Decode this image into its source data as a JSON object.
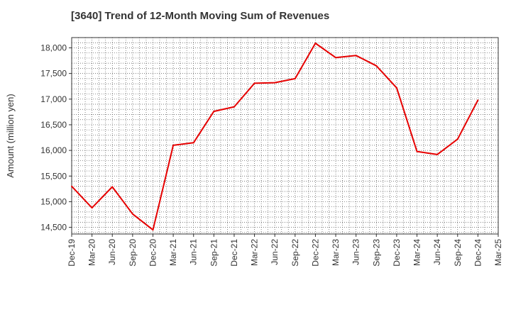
{
  "chart_data": {
    "type": "line",
    "title": "[3640]  Trend of 12-Month Moving Sum of Revenues",
    "ylabel": "Amount (million yen)",
    "xlabel": "",
    "ylim": [
      14370,
      18200
    ],
    "yticks": [
      14500,
      15000,
      15500,
      16000,
      16500,
      17000,
      17500,
      18000
    ],
    "ytick_labels": [
      "14,500",
      "15,000",
      "15,500",
      "16,000",
      "16,500",
      "17,000",
      "17,500",
      "18,000"
    ],
    "categories": [
      "Dec-19",
      "Mar-20",
      "Jun-20",
      "Sep-20",
      "Dec-20",
      "Mar-21",
      "Jun-21",
      "Sep-21",
      "Dec-21",
      "Mar-22",
      "Jun-22",
      "Sep-22",
      "Dec-22",
      "Mar-23",
      "Jun-23",
      "Sep-23",
      "Dec-23",
      "Mar-24",
      "Jun-24",
      "Sep-24",
      "Dec-24",
      "Mar-25"
    ],
    "series": [
      {
        "name": "",
        "color": "#e60000",
        "values": [
          15300,
          14880,
          15290,
          14760,
          14450,
          16100,
          16150,
          16760,
          16850,
          17310,
          17320,
          17400,
          18090,
          17810,
          17850,
          17650,
          17220,
          15980,
          15920,
          16220,
          16980,
          null
        ]
      }
    ],
    "grid": true,
    "grid_style": "dotted",
    "legend": "none"
  }
}
